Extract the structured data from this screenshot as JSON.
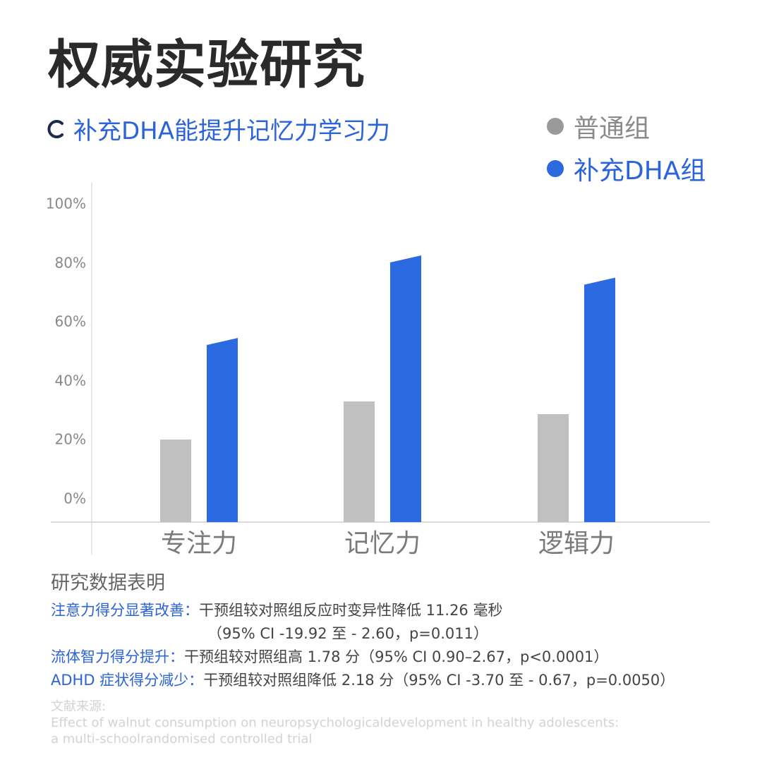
{
  "title": "权威实验研究",
  "subtitle": "补充DHA能提升记忆力学习力",
  "colors": {
    "accent": "#2b6ae0",
    "control": "#c0c0c0",
    "text": "#2a2a2a"
  },
  "chart_data": {
    "type": "bar",
    "categories": [
      "专注力",
      "记忆力",
      "逻辑力"
    ],
    "series": [
      {
        "name": "普通组",
        "color": "#c0c0c0",
        "values": [
          26,
          38,
          34
        ]
      },
      {
        "name": "补充DHA组",
        "color": "#2b6ae0",
        "values": [
          58,
          84,
          77
        ]
      }
    ],
    "y_ticks": [
      "100%",
      "80%",
      "60%",
      "40%",
      "20%",
      "0%"
    ],
    "legend_position": "top-right",
    "grid": false
  },
  "findings": {
    "title": "研究数据表明",
    "items": [
      {
        "label": "注意力得分显著改善：",
        "text": "干预组较对照组反应时变异性降低 11.26 毫秒",
        "cont": "（95% CI -19.92 至 - 2.60，p=0.011）"
      },
      {
        "label": "流体智力得分提升：",
        "text": "干预组较对照组高 1.78 分（95% CI 0.90–2.67，p<0.0001）"
      },
      {
        "label": "ADHD 症状得分减少：",
        "text": "干预组较对照组降低 2.18 分（95% CI -3.70 至 - 0.67，p=0.0050）"
      }
    ]
  },
  "references": {
    "label": "文献来源:",
    "line1": "Effect of walnut consumption on neuropsychologicaldevelopment in healthy adolescents:",
    "line2": "a multi-schoolrandomised controlled trial"
  }
}
